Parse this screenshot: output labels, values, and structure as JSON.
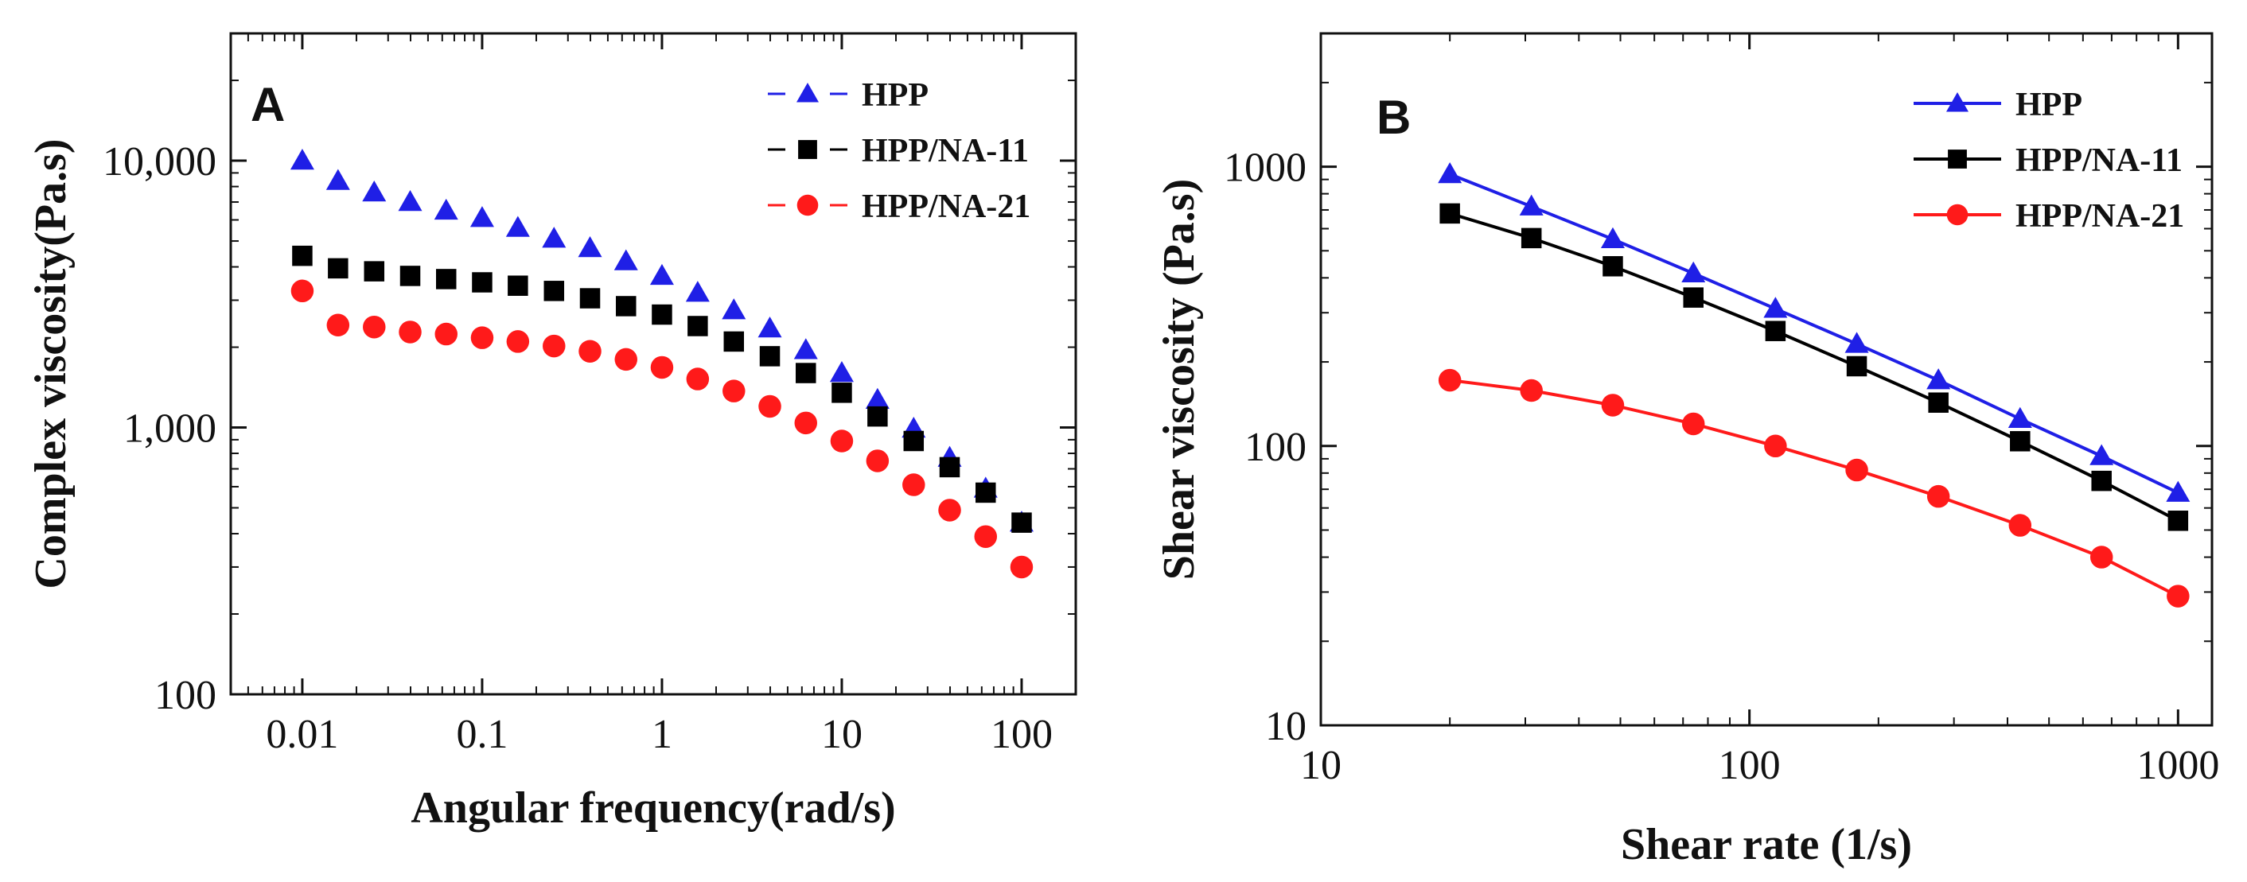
{
  "chart_data": [
    {
      "id": "A",
      "type": "scatter",
      "panel_label": "A",
      "xlabel": "Angular frequency(rad/s)",
      "ylabel": "Complex viscosity(Pa.s)",
      "xscale": "log",
      "yscale": "log",
      "xlim": [
        0.004,
        200
      ],
      "ylim": [
        100,
        30000
      ],
      "xticks": [
        {
          "value": 0.01,
          "label": "0.01"
        },
        {
          "value": 0.1,
          "label": "0.1"
        },
        {
          "value": 1,
          "label": "1"
        },
        {
          "value": 10,
          "label": "10"
        },
        {
          "value": 100,
          "label": "100"
        }
      ],
      "yticks": [
        {
          "value": 100,
          "label": "100"
        },
        {
          "value": 1000,
          "label": "1,000"
        },
        {
          "value": 10000,
          "label": "10,000"
        }
      ],
      "legend_position": "top-right",
      "x": [
        0.01,
        0.0158,
        0.0251,
        0.0398,
        0.0631,
        0.1,
        0.158,
        0.251,
        0.398,
        0.631,
        1,
        1.58,
        2.51,
        3.98,
        6.31,
        10,
        15.8,
        25.1,
        39.8,
        63.1,
        100
      ],
      "series": [
        {
          "name": "HPP",
          "color": "#1f1fe6",
          "marker": "triangle",
          "values": [
            10000,
            8400,
            7600,
            7000,
            6500,
            6100,
            5600,
            5100,
            4700,
            4200,
            3700,
            3200,
            2750,
            2350,
            1950,
            1600,
            1270,
            990,
            770,
            590,
            440
          ]
        },
        {
          "name": "HPP/NA-11",
          "color": "#000000",
          "marker": "square",
          "values": [
            4400,
            3950,
            3850,
            3700,
            3600,
            3500,
            3400,
            3250,
            3050,
            2850,
            2650,
            2400,
            2100,
            1850,
            1600,
            1350,
            1100,
            890,
            710,
            570,
            440
          ]
        },
        {
          "name": "HPP/NA-21",
          "color": "#ff1a1a",
          "marker": "circle",
          "values": [
            3250,
            2420,
            2380,
            2280,
            2240,
            2170,
            2100,
            2020,
            1930,
            1800,
            1680,
            1520,
            1370,
            1200,
            1040,
            890,
            750,
            610,
            490,
            390,
            300
          ]
        }
      ]
    },
    {
      "id": "B",
      "type": "line",
      "panel_label": "B",
      "xlabel": "Shear rate (1/s)",
      "ylabel": "Shear viscosity (Pa.s)",
      "xscale": "log",
      "yscale": "log",
      "xlim": [
        10,
        1200
      ],
      "ylim": [
        10,
        3000
      ],
      "xticks": [
        {
          "value": 10,
          "label": "10"
        },
        {
          "value": 100,
          "label": "100"
        },
        {
          "value": 1000,
          "label": "1000"
        }
      ],
      "yticks": [
        {
          "value": 10,
          "label": "10"
        },
        {
          "value": 100,
          "label": "100"
        },
        {
          "value": 1000,
          "label": "1000"
        }
      ],
      "legend_position": "top-right",
      "x": [
        20,
        31,
        48,
        74,
        115,
        178,
        276,
        428,
        663,
        1000
      ],
      "series": [
        {
          "name": "HPP",
          "color": "#1f1fe6",
          "marker": "triangle",
          "values": [
            940,
            720,
            550,
            415,
            310,
            232,
            172,
            125,
            92,
            68
          ]
        },
        {
          "name": "HPP/NA-11",
          "color": "#000000",
          "marker": "square",
          "values": [
            680,
            555,
            440,
            340,
            258,
            193,
            143,
            104,
            75,
            54
          ]
        },
        {
          "name": "HPP/NA-21",
          "color": "#ff1a1a",
          "marker": "circle",
          "values": [
            172,
            158,
            140,
            120,
            100,
            82,
            66,
            52,
            40,
            29
          ]
        }
      ]
    }
  ]
}
